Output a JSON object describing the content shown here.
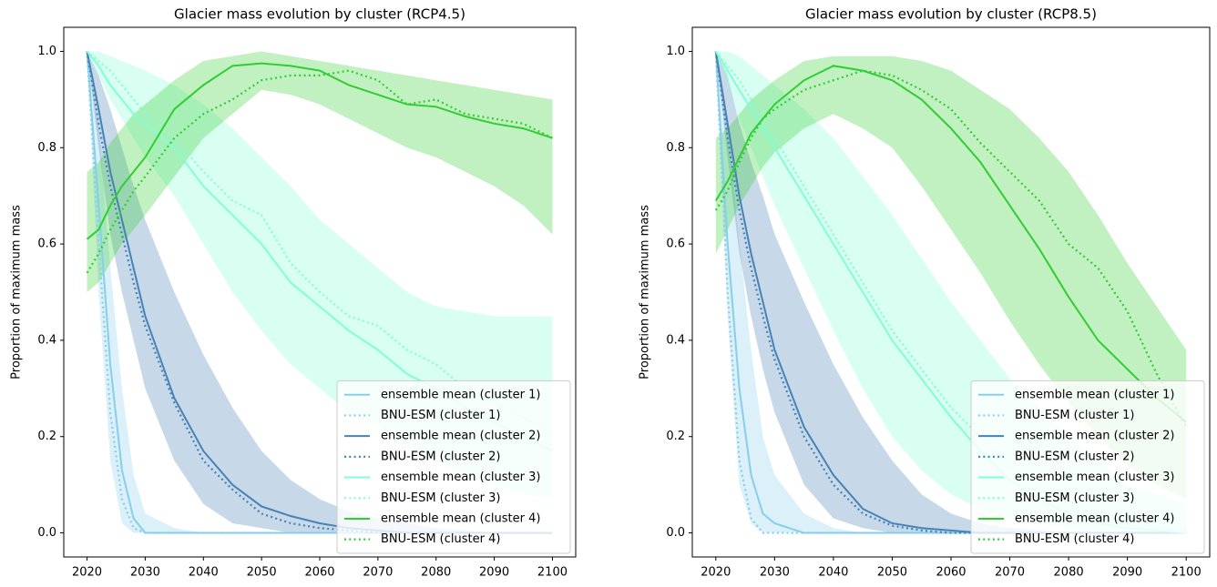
{
  "chart_data": [
    {
      "type": "line",
      "title": "Glacier mass evolution by cluster (RCP4.5)",
      "y_label": "Proportion of maximum mass",
      "x": [
        2020,
        2022,
        2024,
        2026,
        2028,
        2030,
        2035,
        2040,
        2045,
        2050,
        2055,
        2060,
        2065,
        2070,
        2075,
        2080,
        2085,
        2090,
        2095,
        2100
      ],
      "xlim": [
        2016,
        2104
      ],
      "xticks": [
        2020,
        2030,
        2040,
        2050,
        2060,
        2070,
        2080,
        2090,
        2100
      ],
      "ylim": [
        -0.05,
        1.05
      ],
      "yticks": [
        {
          "value": 0,
          "label": "0.0"
        },
        0.2,
        0.4,
        0.6,
        0.8,
        {
          "value": 1,
          "label": "1.0"
        }
      ],
      "legend": "lower right",
      "series": [
        {
          "name": "ensemble mean (cluster 1)",
          "color": "#87ceeb",
          "linestyle": "solid",
          "values": [
            1.0,
            0.68,
            0.35,
            0.13,
            0.03,
            0.0,
            0,
            0,
            0,
            0,
            0,
            0,
            0,
            0,
            0,
            0,
            0,
            0,
            0,
            0
          ],
          "band": {
            "low": [
              1.0,
              0.5,
              0.15,
              0.02,
              0,
              0,
              0,
              0,
              0,
              0,
              0,
              0,
              0,
              0,
              0,
              0,
              0,
              0,
              0,
              0
            ],
            "high": [
              1.0,
              0.85,
              0.55,
              0.3,
              0.12,
              0.04,
              0.01,
              0,
              0,
              0,
              0,
              0,
              0,
              0,
              0,
              0,
              0,
              0,
              0,
              0
            ]
          }
        },
        {
          "name": "BNU-ESM (cluster 1)",
          "color": "#87ceeb",
          "linestyle": "dotted",
          "values": [
            1.0,
            0.6,
            0.25,
            0.07,
            0.01,
            0,
            0,
            0,
            0,
            0,
            0,
            0,
            0,
            0,
            0,
            0,
            0,
            0,
            0,
            0
          ]
        },
        {
          "name": "ensemble mean (cluster 2)",
          "color": "#4682b4",
          "linestyle": "solid",
          "values": [
            1.0,
            0.88,
            0.75,
            0.65,
            0.55,
            0.45,
            0.28,
            0.17,
            0.1,
            0.055,
            0.035,
            0.02,
            0.01,
            0.005,
            0,
            0,
            0,
            0,
            0,
            0
          ],
          "band": {
            "low": [
              1.0,
              0.8,
              0.62,
              0.5,
              0.4,
              0.3,
              0.15,
              0.06,
              0.02,
              0.01,
              0,
              0,
              0,
              0,
              0,
              0,
              0,
              0,
              0,
              0
            ],
            "high": [
              1.0,
              0.95,
              0.88,
              0.8,
              0.72,
              0.65,
              0.5,
              0.37,
              0.26,
              0.17,
              0.11,
              0.07,
              0.045,
              0.03,
              0.02,
              0.01,
              0.005,
              0,
              0,
              0
            ]
          }
        },
        {
          "name": "BNU-ESM (cluster 2)",
          "color": "#4682b4",
          "linestyle": "dotted",
          "values": [
            1.0,
            0.85,
            0.72,
            0.62,
            0.52,
            0.43,
            0.27,
            0.15,
            0.09,
            0.04,
            0.02,
            0.01,
            0.005,
            0,
            0,
            0,
            0,
            0,
            0,
            0
          ]
        },
        {
          "name": "ensemble mean (cluster 3)",
          "color": "#7fffd4",
          "linestyle": "solid",
          "values": [
            1.0,
            0.97,
            0.93,
            0.9,
            0.87,
            0.85,
            0.8,
            0.72,
            0.66,
            0.6,
            0.52,
            0.47,
            0.42,
            0.38,
            0.33,
            0.3,
            0.26,
            0.23,
            0.2,
            0.17
          ],
          "band": {
            "low": [
              1.0,
              0.95,
              0.9,
              0.86,
              0.82,
              0.78,
              0.7,
              0.6,
              0.5,
              0.42,
              0.35,
              0.3,
              0.25,
              0.22,
              0.18,
              0.15,
              0.12,
              0.1,
              0.08,
              0.07
            ],
            "high": [
              1.0,
              1.0,
              0.99,
              0.98,
              0.97,
              0.96,
              0.93,
              0.89,
              0.84,
              0.78,
              0.72,
              0.65,
              0.6,
              0.55,
              0.5,
              0.47,
              0.46,
              0.45,
              0.45,
              0.45
            ]
          }
        },
        {
          "name": "BNU-ESM (cluster 3)",
          "color": "#7fffd4",
          "linestyle": "dotted",
          "values": [
            1.0,
            0.98,
            0.96,
            0.93,
            0.9,
            0.87,
            0.82,
            0.75,
            0.69,
            0.66,
            0.56,
            0.5,
            0.45,
            0.43,
            0.38,
            0.35,
            0.3,
            0.27,
            0.24,
            0.21
          ]
        },
        {
          "name": "ensemble mean (cluster 4)",
          "color": "#32cd32",
          "linestyle": "solid",
          "values": [
            0.61,
            0.63,
            0.68,
            0.72,
            0.75,
            0.78,
            0.88,
            0.93,
            0.97,
            0.975,
            0.97,
            0.96,
            0.93,
            0.91,
            0.89,
            0.885,
            0.865,
            0.85,
            0.84,
            0.82
          ],
          "band": {
            "low": [
              0.5,
              0.52,
              0.56,
              0.6,
              0.63,
              0.66,
              0.74,
              0.82,
              0.87,
              0.92,
              0.91,
              0.89,
              0.86,
              0.83,
              0.8,
              0.78,
              0.75,
              0.72,
              0.68,
              0.62
            ],
            "high": [
              0.75,
              0.77,
              0.81,
              0.84,
              0.87,
              0.89,
              0.94,
              0.98,
              0.99,
              1.0,
              0.99,
              0.98,
              0.97,
              0.96,
              0.95,
              0.94,
              0.93,
              0.92,
              0.91,
              0.9
            ]
          }
        },
        {
          "name": "BNU-ESM (cluster 4)",
          "color": "#32cd32",
          "linestyle": "dotted",
          "values": [
            0.54,
            0.58,
            0.63,
            0.67,
            0.71,
            0.74,
            0.82,
            0.87,
            0.9,
            0.94,
            0.95,
            0.95,
            0.96,
            0.94,
            0.89,
            0.9,
            0.87,
            0.86,
            0.85,
            0.82
          ]
        }
      ]
    },
    {
      "type": "line",
      "title": "Glacier mass evolution by cluster (RCP8.5)",
      "y_label": "Proportion of maximum mass",
      "x": [
        2020,
        2022,
        2024,
        2026,
        2028,
        2030,
        2035,
        2040,
        2045,
        2050,
        2055,
        2060,
        2065,
        2070,
        2075,
        2080,
        2085,
        2090,
        2095,
        2100
      ],
      "xlim": [
        2016,
        2104
      ],
      "xticks": [
        2020,
        2030,
        2040,
        2050,
        2060,
        2070,
        2080,
        2090,
        2100
      ],
      "ylim": [
        -0.05,
        1.05
      ],
      "yticks": [
        {
          "value": 0,
          "label": "0.0"
        },
        0.2,
        0.4,
        0.6,
        0.8,
        {
          "value": 1,
          "label": "1.0"
        }
      ],
      "legend": "lower right",
      "series": [
        {
          "name": "ensemble mean (cluster 1)",
          "color": "#87ceeb",
          "linestyle": "solid",
          "values": [
            1.0,
            0.6,
            0.3,
            0.12,
            0.04,
            0.02,
            0,
            0,
            0,
            0,
            0,
            0,
            0,
            0,
            0,
            0,
            0,
            0,
            0,
            0
          ],
          "band": {
            "low": [
              1.0,
              0.45,
              0.1,
              0.02,
              0,
              0,
              0,
              0,
              0,
              0,
              0,
              0,
              0,
              0,
              0,
              0,
              0,
              0,
              0,
              0
            ],
            "high": [
              1.0,
              0.85,
              0.6,
              0.38,
              0.2,
              0.12,
              0.04,
              0.01,
              0,
              0,
              0,
              0,
              0,
              0,
              0,
              0,
              0,
              0,
              0,
              0
            ]
          }
        },
        {
          "name": "BNU-ESM (cluster 1)",
          "color": "#87ceeb",
          "linestyle": "dotted",
          "values": [
            1.0,
            0.5,
            0.15,
            0.03,
            0,
            0,
            0,
            0,
            0,
            0,
            0,
            0,
            0,
            0,
            0,
            0,
            0,
            0,
            0,
            0
          ]
        },
        {
          "name": "ensemble mean (cluster 2)",
          "color": "#4682b4",
          "linestyle": "solid",
          "values": [
            1.0,
            0.85,
            0.7,
            0.58,
            0.48,
            0.38,
            0.22,
            0.12,
            0.05,
            0.02,
            0.01,
            0.005,
            0,
            0,
            0,
            0,
            0,
            0,
            0,
            0
          ],
          "band": {
            "low": [
              1.0,
              0.78,
              0.58,
              0.45,
              0.34,
              0.25,
              0.1,
              0.03,
              0.01,
              0,
              0,
              0,
              0,
              0,
              0,
              0,
              0,
              0,
              0,
              0
            ],
            "high": [
              1.0,
              0.95,
              0.85,
              0.77,
              0.7,
              0.62,
              0.48,
              0.35,
              0.24,
              0.15,
              0.08,
              0.04,
              0.02,
              0.01,
              0.005,
              0,
              0,
              0,
              0,
              0
            ]
          }
        },
        {
          "name": "BNU-ESM (cluster 2)",
          "color": "#4682b4",
          "linestyle": "dotted",
          "values": [
            1.0,
            0.82,
            0.67,
            0.55,
            0.45,
            0.36,
            0.2,
            0.1,
            0.04,
            0.015,
            0.005,
            0,
            0,
            0,
            0,
            0,
            0,
            0,
            0,
            0
          ]
        },
        {
          "name": "ensemble mean (cluster 3)",
          "color": "#7fffd4",
          "linestyle": "solid",
          "values": [
            1.0,
            0.96,
            0.92,
            0.88,
            0.84,
            0.8,
            0.7,
            0.6,
            0.5,
            0.4,
            0.32,
            0.24,
            0.17,
            0.11,
            0.07,
            0.04,
            0.02,
            0.01,
            0.005,
            0
          ],
          "band": {
            "low": [
              1.0,
              0.93,
              0.86,
              0.8,
              0.74,
              0.68,
              0.55,
              0.42,
              0.3,
              0.2,
              0.13,
              0.08,
              0.05,
              0.03,
              0.02,
              0.01,
              0,
              0,
              0,
              0
            ],
            "high": [
              1.0,
              1.0,
              0.99,
              0.97,
              0.95,
              0.93,
              0.88,
              0.82,
              0.74,
              0.66,
              0.57,
              0.48,
              0.4,
              0.32,
              0.26,
              0.2,
              0.15,
              0.1,
              0.08,
              0.06
            ]
          }
        },
        {
          "name": "BNU-ESM (cluster 3)",
          "color": "#7fffd4",
          "linestyle": "dotted",
          "values": [
            1.0,
            0.97,
            0.94,
            0.9,
            0.86,
            0.82,
            0.72,
            0.62,
            0.52,
            0.42,
            0.34,
            0.26,
            0.2,
            0.14,
            0.1,
            0.06,
            0.04,
            0.02,
            0.01,
            0.005
          ]
        },
        {
          "name": "ensemble mean (cluster 4)",
          "color": "#32cd32",
          "linestyle": "solid",
          "values": [
            0.69,
            0.73,
            0.78,
            0.83,
            0.86,
            0.89,
            0.94,
            0.97,
            0.96,
            0.94,
            0.9,
            0.84,
            0.77,
            0.68,
            0.59,
            0.49,
            0.4,
            0.34,
            0.28,
            0.23
          ],
          "band": {
            "low": [
              0.58,
              0.63,
              0.68,
              0.72,
              0.76,
              0.79,
              0.84,
              0.87,
              0.84,
              0.8,
              0.72,
              0.63,
              0.54,
              0.44,
              0.35,
              0.27,
              0.2,
              0.14,
              0.1,
              0.07
            ],
            "high": [
              0.82,
              0.84,
              0.87,
              0.9,
              0.92,
              0.94,
              0.98,
              0.99,
              0.99,
              0.99,
              0.98,
              0.96,
              0.92,
              0.88,
              0.82,
              0.75,
              0.66,
              0.56,
              0.47,
              0.38
            ]
          }
        },
        {
          "name": "BNU-ESM (cluster 4)",
          "color": "#32cd32",
          "linestyle": "dotted",
          "values": [
            0.67,
            0.71,
            0.77,
            0.82,
            0.86,
            0.88,
            0.92,
            0.94,
            0.96,
            0.95,
            0.92,
            0.88,
            0.81,
            0.75,
            0.69,
            0.6,
            0.55,
            0.46,
            0.33,
            0.22
          ]
        }
      ]
    }
  ]
}
